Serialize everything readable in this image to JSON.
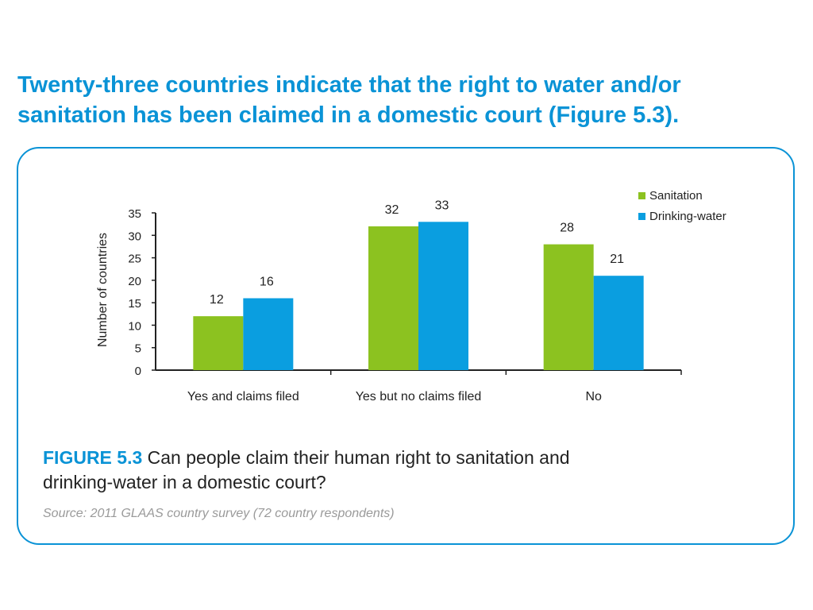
{
  "headline": {
    "line1": "Twenty-three countries indicate that the right to water and/or",
    "line2": "sanitation has been claimed in a domestic court (Figure 5.3)."
  },
  "caption": {
    "figure_number": "FIGURE 5.3",
    "text_line1": "Can people claim their human right to sanitation and",
    "text_line2": "drinking-water in a domestic court?"
  },
  "source": "Source: 2011 GLAAS country survey (72 country respondents)",
  "colors": {
    "accent": "#0a93d6",
    "sanitation": "#8cc220",
    "drinking_water": "#0a9ee0"
  },
  "chart_data": {
    "type": "bar",
    "categories": [
      "Yes and claims filed",
      "Yes but no claims filed",
      "No"
    ],
    "series": [
      {
        "name": "Sanitation",
        "values": [
          12,
          32,
          28
        ],
        "color": "#8cc220"
      },
      {
        "name": "Drinking-water",
        "values": [
          16,
          33,
          21
        ],
        "color": "#0a9ee0"
      }
    ],
    "title": "",
    "xlabel": "",
    "ylabel": "Number of countries",
    "ylim": [
      0,
      35
    ],
    "yticks": [
      0,
      5,
      10,
      15,
      20,
      25,
      30,
      35
    ],
    "grid": false,
    "legend_position": "top-right",
    "data_labels": true
  }
}
